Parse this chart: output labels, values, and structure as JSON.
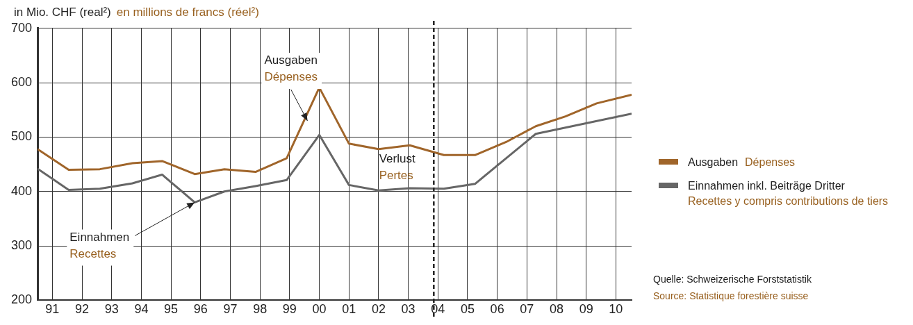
{
  "chart_data": {
    "type": "line",
    "title": "in Mio. CHF (real²)",
    "subtitle": "en millions de francs (réel²)",
    "xlim": [
      1990.5,
      2010.53
    ],
    "xticks": [
      {
        "value": 1991,
        "label": "91"
      },
      {
        "value": 1992,
        "label": "92"
      },
      {
        "value": 1993,
        "label": "93"
      },
      {
        "value": 1994,
        "label": "94"
      },
      {
        "value": 1995,
        "label": "95"
      },
      {
        "value": 1996,
        "label": "96"
      },
      {
        "value": 1997,
        "label": "97"
      },
      {
        "value": 1998,
        "label": "98"
      },
      {
        "value": 1999,
        "label": "99"
      },
      {
        "value": 2000,
        "label": "00"
      },
      {
        "value": 2001,
        "label": "01"
      },
      {
        "value": 2002,
        "label": "02"
      },
      {
        "value": 2003,
        "label": "03"
      },
      {
        "value": 2004,
        "label": "04"
      },
      {
        "value": 2005,
        "label": "05"
      },
      {
        "value": 2006,
        "label": "06"
      },
      {
        "value": 2007,
        "label": "07"
      },
      {
        "value": 2008,
        "label": "08"
      },
      {
        "value": 2009,
        "label": "09"
      },
      {
        "value": 2010,
        "label": "10"
      }
    ],
    "ylim": [
      200,
      700
    ],
    "yticks": [
      200,
      300,
      400,
      500,
      600,
      700
    ],
    "grid": true,
    "legend": "right",
    "line_style": "solid",
    "marker": "none",
    "series": [
      {
        "name": "Ausgaben\nDépenses",
        "color": "#a0652a",
        "x": [
          1990.5,
          1991.55,
          1992.6,
          1993.7,
          1994.7,
          1995.8,
          1996.8,
          1997.85,
          1998.9,
          2000,
          2001,
          2002,
          2003.05,
          2004.2,
          2005.25,
          2006.3,
          2007.3,
          2008.3,
          2009.35,
          2010.53
        ],
        "values": [
          478,
          440,
          441,
          452,
          456,
          432,
          441,
          436,
          461,
          591,
          488,
          478,
          485,
          467,
          467,
          491,
          520,
          538,
          562,
          578
        ]
      },
      {
        "name": "Einnahmen inkl. Beiträge Dritter\nRecettes y compris contributions de tiers",
        "color": "#666666",
        "x": [
          1990.5,
          1991.55,
          1992.6,
          1993.7,
          1994.7,
          1995.8,
          1996.8,
          1997.85,
          1998.9,
          2000,
          2001,
          2002,
          2003.05,
          2004.2,
          2005.25,
          2007.3,
          2010.53
        ],
        "values": [
          442,
          403,
          405,
          415,
          431,
          380,
          400,
          410,
          421,
          504,
          412,
          402,
          406,
          405,
          414,
          506,
          543
        ]
      }
    ],
    "ref_lines": [
      {
        "axis": "x",
        "value": 2003.86,
        "color": "#222222",
        "line_style": "dashed"
      }
    ],
    "annotations": [
      {
        "text": "Ausgaben\nDépenses",
        "x": 1999.6,
        "y": 530
      },
      {
        "text": "Einnahmen\nRecettes",
        "x": 1995.8,
        "y": 380
      },
      "Verlust\nPertes",
      "Quelle: Schweizerische Forststatistik\nSource: Statistique forestière suisse"
    ]
  }
}
